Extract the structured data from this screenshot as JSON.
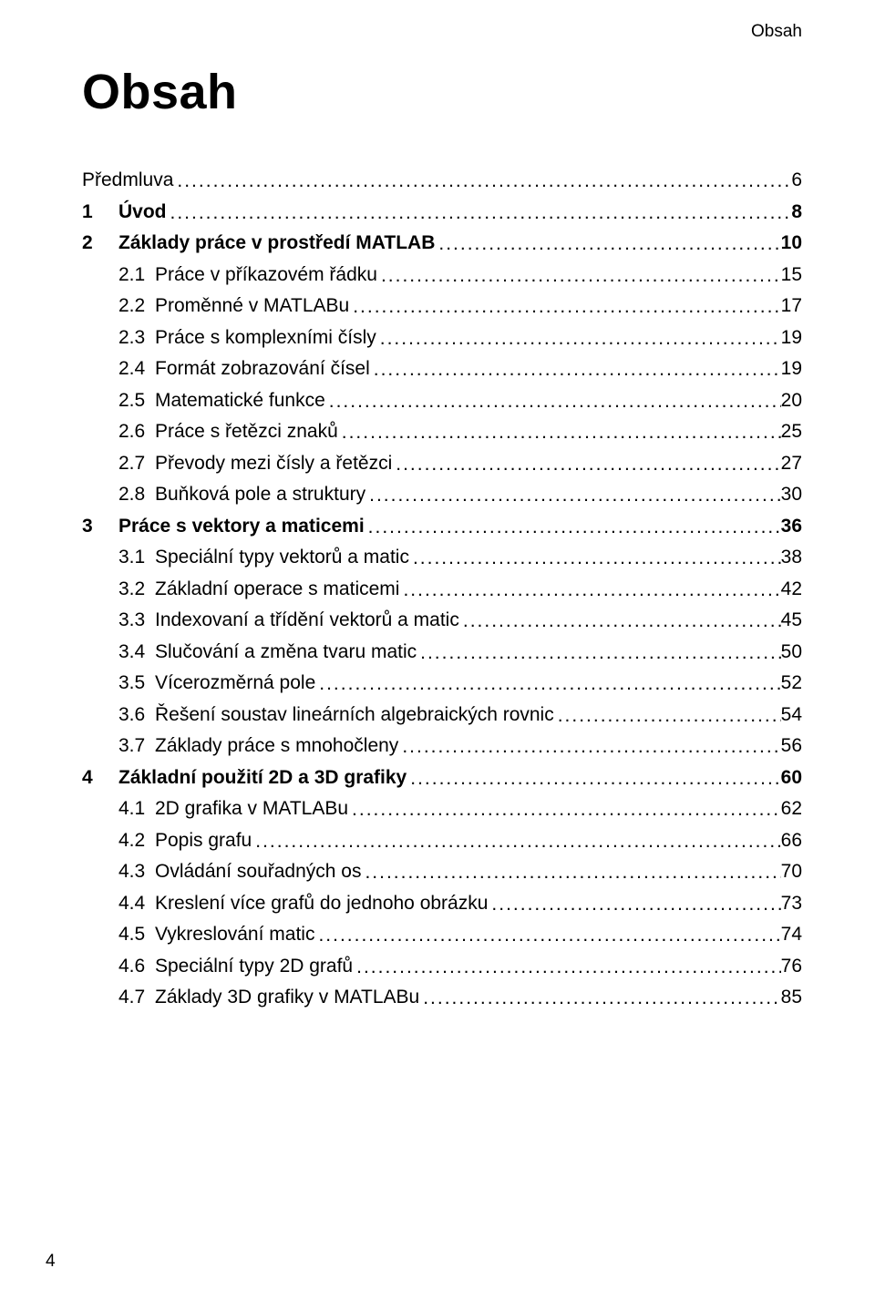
{
  "header": {
    "running_title": "Obsah",
    "main_title": "Obsah",
    "footer_page": "4"
  },
  "toc": {
    "entries": [
      {
        "level": 0,
        "num": "",
        "label": "Předmluva",
        "page": "6"
      },
      {
        "level": 1,
        "num": "1",
        "label": "Úvod",
        "page": "8"
      },
      {
        "level": 1,
        "num": "2",
        "label": "Základy práce v prostředí MATLAB",
        "page": "10"
      },
      {
        "level": 2,
        "num": "2.1",
        "label": "Práce v příkazovém řádku",
        "page": "15"
      },
      {
        "level": 2,
        "num": "2.2",
        "label": "Proměnné v MATLABu",
        "page": "17"
      },
      {
        "level": 2,
        "num": "2.3",
        "label": "Práce s komplexními čísly",
        "page": "19"
      },
      {
        "level": 2,
        "num": "2.4",
        "label": "Formát zobrazování čísel",
        "page": "19"
      },
      {
        "level": 2,
        "num": "2.5",
        "label": "Matematické funkce",
        "page": "20"
      },
      {
        "level": 2,
        "num": "2.6",
        "label": "Práce s řetězci znaků",
        "page": "25"
      },
      {
        "level": 2,
        "num": "2.7",
        "label": "Převody mezi čísly a řetězci",
        "page": "27"
      },
      {
        "level": 2,
        "num": "2.8",
        "label": "Buňková pole a struktury",
        "page": "30"
      },
      {
        "level": 1,
        "num": "3",
        "label": "Práce s vektory a maticemi",
        "page": "36"
      },
      {
        "level": 2,
        "num": "3.1",
        "label": "Speciální typy vektorů a matic",
        "page": "38"
      },
      {
        "level": 2,
        "num": "3.2",
        "label": "Základní operace s maticemi",
        "page": "42"
      },
      {
        "level": 2,
        "num": "3.3",
        "label": "Indexovaní a třídění vektorů a matic",
        "page": "45"
      },
      {
        "level": 2,
        "num": "3.4",
        "label": "Slučování a změna tvaru matic",
        "page": "50"
      },
      {
        "level": 2,
        "num": "3.5",
        "label": "Vícerozměrná pole",
        "page": "52"
      },
      {
        "level": 2,
        "num": "3.6",
        "label": "Řešení soustav lineárních algebraických rovnic",
        "page": "54"
      },
      {
        "level": 2,
        "num": "3.7",
        "label": "Základy práce s mnohočleny",
        "page": "56"
      },
      {
        "level": 1,
        "num": "4",
        "label": "Základní použití 2D a 3D grafiky",
        "page": "60"
      },
      {
        "level": 2,
        "num": "4.1",
        "label": "2D grafika v MATLABu",
        "page": "62"
      },
      {
        "level": 2,
        "num": "4.2",
        "label": "Popis grafu",
        "page": "66"
      },
      {
        "level": 2,
        "num": "4.3",
        "label": "Ovládání souřadných os",
        "page": "70"
      },
      {
        "level": 2,
        "num": "4.4",
        "label": "Kreslení více grafů do jednoho obrázku",
        "page": "73"
      },
      {
        "level": 2,
        "num": "4.5",
        "label": "Vykreslování matic",
        "page": "74"
      },
      {
        "level": 2,
        "num": "4.6",
        "label": "Speciální typy 2D grafů",
        "page": "76"
      },
      {
        "level": 2,
        "num": "4.7",
        "label": "Základy 3D grafiky v MATLABu",
        "page": "85"
      }
    ]
  }
}
